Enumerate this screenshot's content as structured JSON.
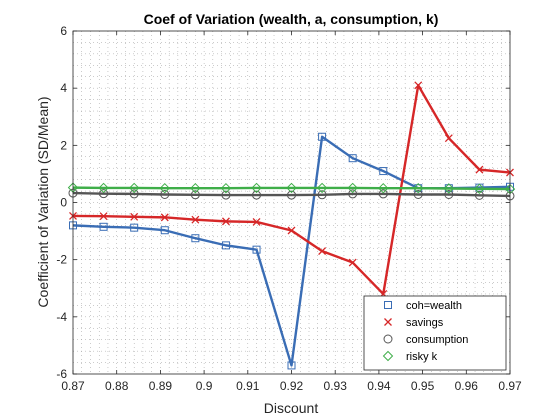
{
  "chart_data": {
    "type": "line",
    "title": "Coef of Variation (wealth, a, consumption, k)",
    "xlabel": "Discount",
    "ylabel": "Coefficient of Variation (SD/Mean)",
    "xlim": [
      0.87,
      0.97
    ],
    "ylim": [
      -6,
      6
    ],
    "xticks": [
      "0.87",
      "0.88",
      "0.89",
      "0.9",
      "0.91",
      "0.92",
      "0.93",
      "0.94",
      "0.95",
      "0.96",
      "0.97"
    ],
    "yticks": [
      "-6",
      "-4",
      "-2",
      "0",
      "2",
      "4",
      "6"
    ],
    "grid": "minor-dotted",
    "legend_position": "bottom-right",
    "x": [
      0.87,
      0.877,
      0.884,
      0.891,
      0.898,
      0.905,
      0.912,
      0.92,
      0.927,
      0.934,
      0.941,
      0.949,
      0.956,
      0.963,
      0.97
    ],
    "series": [
      {
        "name": "coh=wealth",
        "color": "#3a6db5",
        "marker": "square",
        "values": [
          -0.8,
          -0.85,
          -0.88,
          -0.97,
          -1.25,
          -1.5,
          -1.65,
          -5.7,
          2.3,
          1.55,
          1.1,
          0.5,
          0.5,
          0.52,
          0.55
        ]
      },
      {
        "name": "savings",
        "color": "#d62728",
        "marker": "x",
        "values": [
          -0.47,
          -0.48,
          -0.5,
          -0.52,
          -0.6,
          -0.66,
          -0.68,
          -0.98,
          -1.7,
          -2.1,
          -3.2,
          4.1,
          2.25,
          1.15,
          1.05
        ]
      },
      {
        "name": "consumption",
        "color": "#555555",
        "marker": "circle",
        "values": [
          0.33,
          0.31,
          0.3,
          0.28,
          0.27,
          0.26,
          0.26,
          0.26,
          0.27,
          0.3,
          0.3,
          0.28,
          0.28,
          0.25,
          0.23
        ]
      },
      {
        "name": "risky k",
        "color": "#3fae49",
        "marker": "diamond",
        "values": [
          0.52,
          0.51,
          0.51,
          0.5,
          0.5,
          0.5,
          0.51,
          0.51,
          0.51,
          0.51,
          0.5,
          0.5,
          0.49,
          0.48,
          0.47
        ]
      }
    ]
  }
}
